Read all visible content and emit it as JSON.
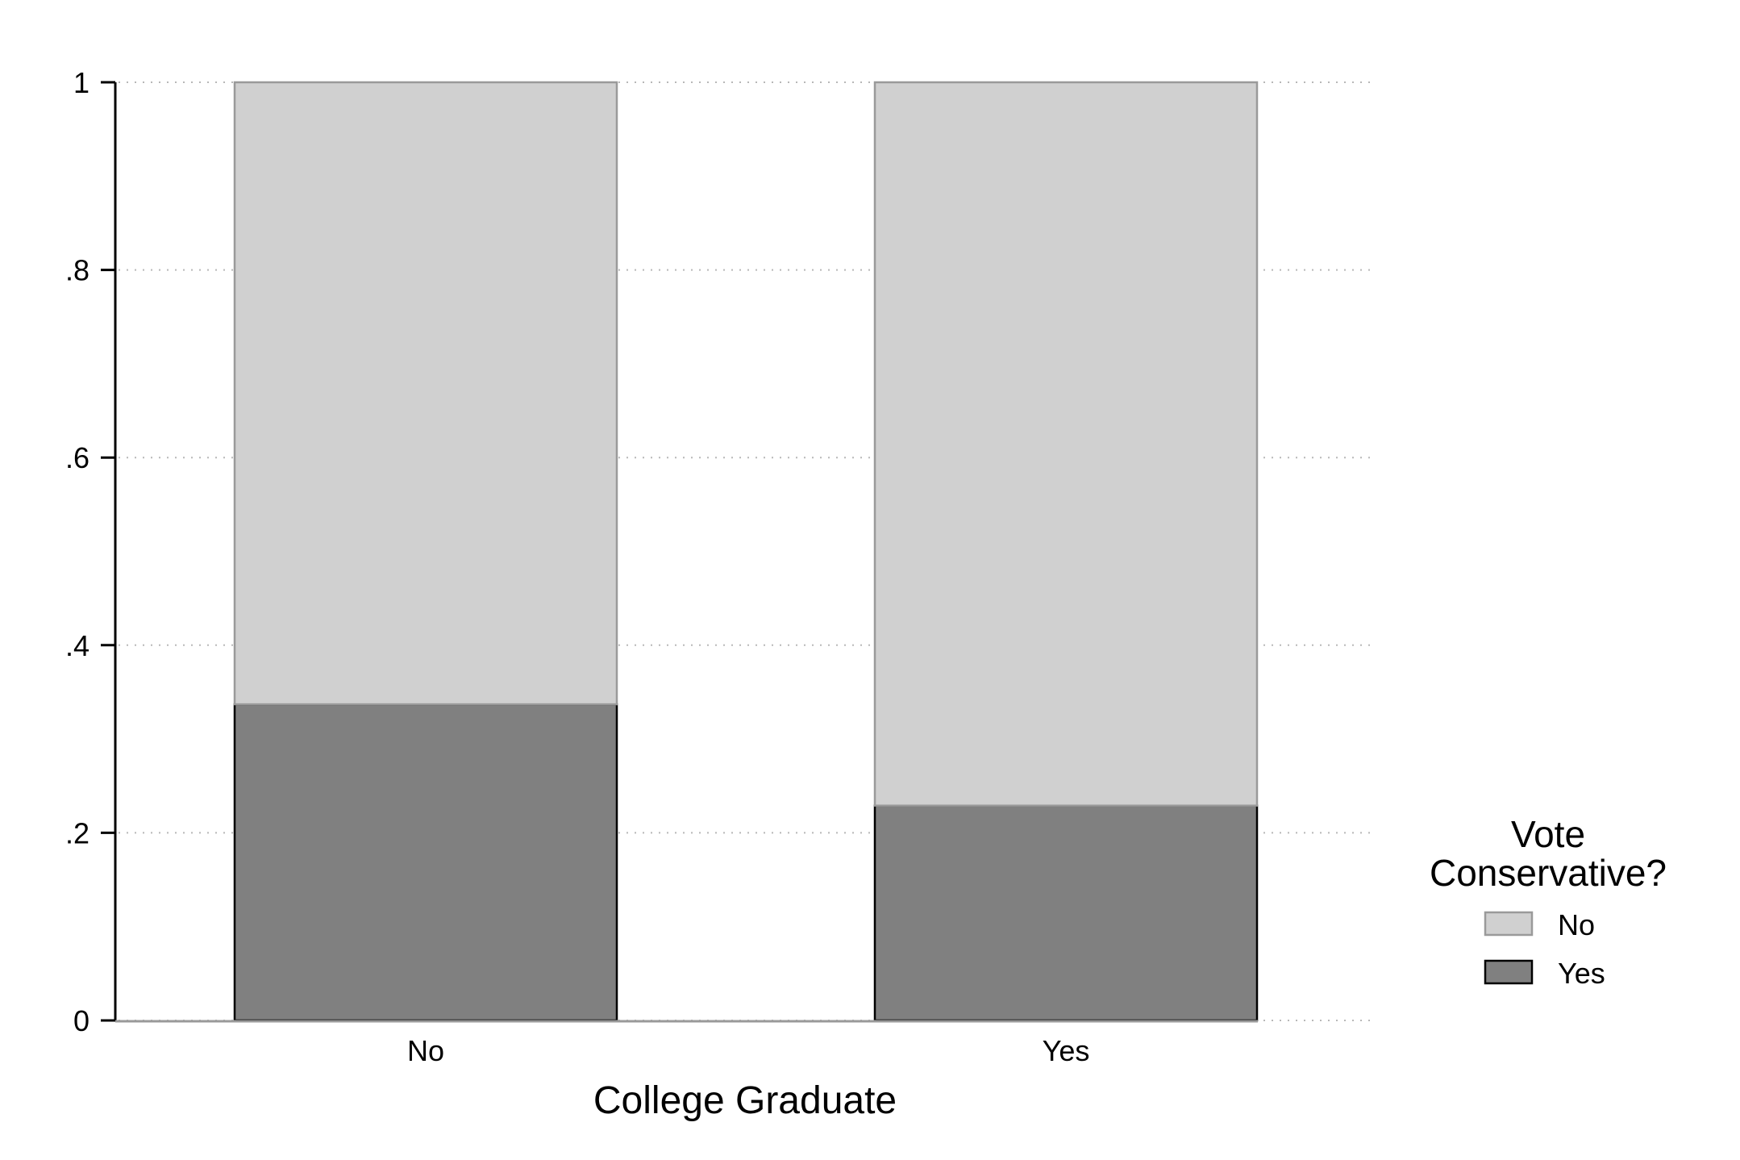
{
  "chart_data": {
    "type": "bar",
    "stacked": true,
    "normalized": true,
    "categories": [
      "No",
      "Yes"
    ],
    "series": [
      {
        "name": "Yes",
        "values": [
          0.337,
          0.229
        ],
        "color": "#808080",
        "stroke": "#000000"
      },
      {
        "name": "No",
        "values": [
          0.663,
          0.771
        ],
        "color": "#d0d0d0",
        "stroke": "#9a9a9a"
      }
    ],
    "title": "",
    "xlabel": "College Graduate",
    "ylabel": "",
    "ylim": [
      0,
      1
    ],
    "yticks": [
      0,
      0.2,
      0.4,
      0.6,
      0.8,
      1
    ],
    "ytick_labels": [
      "0",
      ".2",
      ".4",
      ".6",
      ".8",
      "1"
    ],
    "grid": "dotted horizontal",
    "legend": {
      "title_lines": [
        "Vote",
        "Conservative?"
      ],
      "entries": [
        "No",
        "Yes"
      ],
      "placement": "right"
    }
  }
}
